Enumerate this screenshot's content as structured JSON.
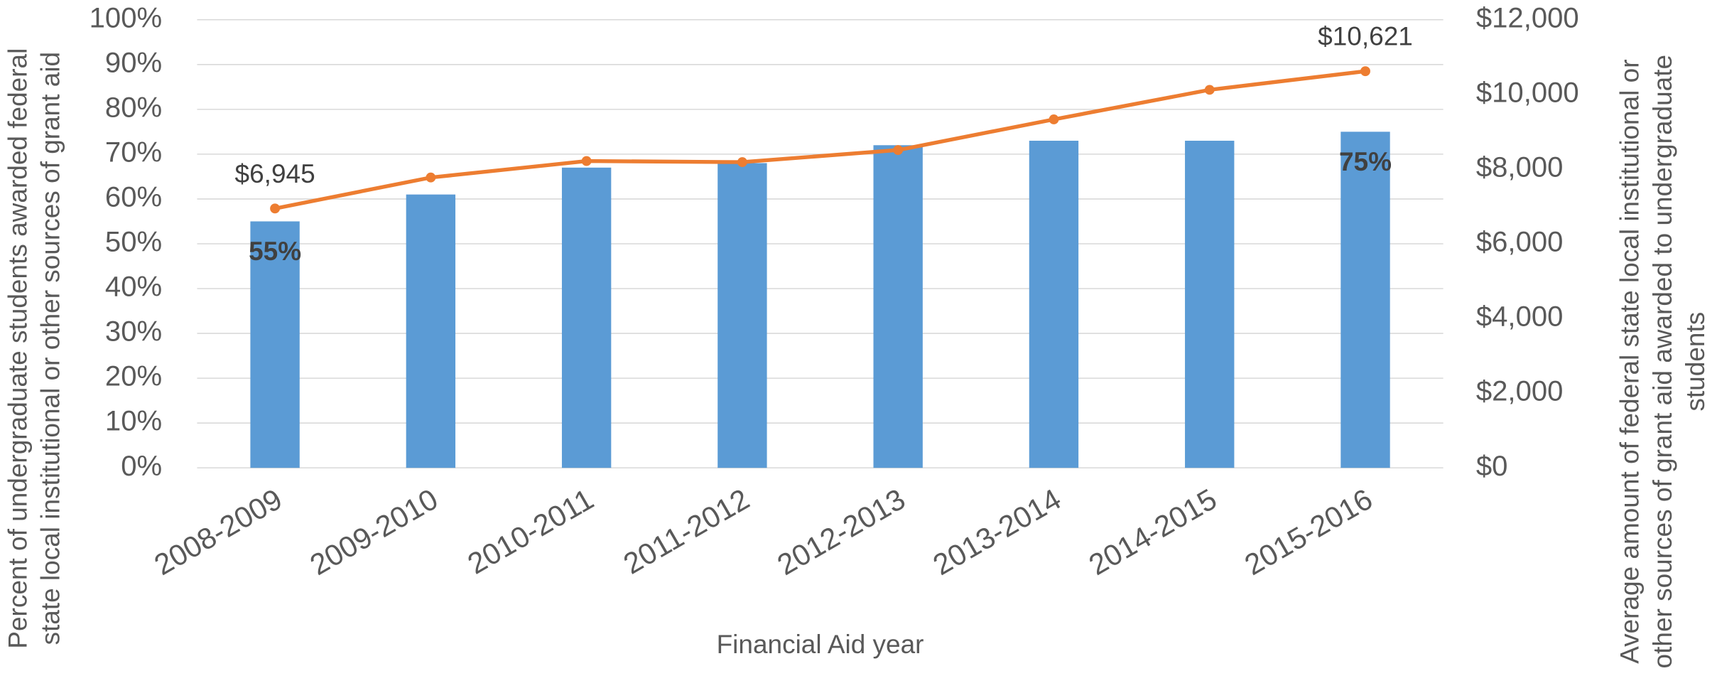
{
  "chart_data": {
    "type": "bar-line",
    "x_label": "Financial Aid year",
    "y_label": [
      "Percent of undergraduate students awarded federal",
      "state  local  institutional or other sources of grant aid"
    ],
    "y2_label": [
      "Average amount of federal  state  local  institutional or",
      "other sources of grant aid awarded to undergraduate",
      "students"
    ],
    "categories": [
      "2008-2009",
      "2009-2010",
      "2010-2011",
      "2011-2012",
      "2012-2013",
      "2013-2014",
      "2014-2015",
      "2015-2016"
    ],
    "series": [
      {
        "type": "bar",
        "color": "#5b9bd5",
        "values": [
          55,
          61,
          67,
          68,
          72,
          73,
          73,
          75
        ],
        "value_labels": [
          "55%",
          null,
          null,
          null,
          null,
          null,
          null,
          "75%"
        ]
      },
      {
        "type": "line",
        "axis": "y2",
        "color": "#ed7d31",
        "values": [
          6945,
          7775,
          8216,
          8187,
          8510,
          9331,
          10123,
          10621
        ],
        "value_labels": [
          "$6,945",
          null,
          null,
          null,
          null,
          null,
          null,
          "$10,621"
        ]
      }
    ],
    "ylim": [
      0,
      100
    ],
    "yticks": [
      {
        "value": 0,
        "label": "0%"
      },
      {
        "value": 10,
        "label": "10%"
      },
      {
        "value": 20,
        "label": "20%"
      },
      {
        "value": 30,
        "label": "30%"
      },
      {
        "value": 40,
        "label": "40%"
      },
      {
        "value": 50,
        "label": "50%"
      },
      {
        "value": 60,
        "label": "60%"
      },
      {
        "value": 70,
        "label": "70%"
      },
      {
        "value": 80,
        "label": "80%"
      },
      {
        "value": 90,
        "label": "90%"
      },
      {
        "value": 100,
        "label": "100%"
      }
    ],
    "y2lim": [
      0,
      12000
    ],
    "y2ticks": [
      {
        "value": 0,
        "label": "$0"
      },
      {
        "value": 2000,
        "label": "$2,000"
      },
      {
        "value": 4000,
        "label": "$4,000"
      },
      {
        "value": 6000,
        "label": "$6,000"
      },
      {
        "value": 8000,
        "label": "$8,000"
      },
      {
        "value": 10000,
        "label": "$10,000"
      },
      {
        "value": 12000,
        "label": "$12,000"
      }
    ],
    "grid": true
  }
}
